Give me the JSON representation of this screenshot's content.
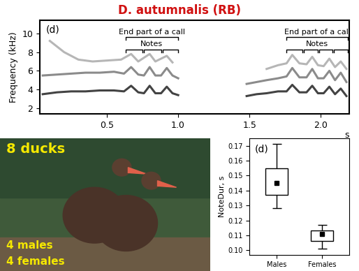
{
  "title": "D. autumnalis (RB)",
  "chart_data": [
    {
      "type": "line",
      "xlabel": "s",
      "ylabel": "Frequency (kHz)",
      "annotations": [
        "(d)",
        "End part of a call",
        "Notes",
        "End part of a call",
        "Notes"
      ],
      "xlim": [
        0.03,
        2.2
      ],
      "xticks": [
        0.5,
        {
          "value": 1.0,
          "label": "1.0"
        },
        1.5,
        {
          "value": 2.0,
          "label": "2.0"
        }
      ],
      "ylim": [
        1.4,
        11.4
      ],
      "yticks": [
        2,
        4,
        6,
        8,
        10
      ],
      "series": [
        {
          "color": "#222222",
          "x": [
            0.05,
            0.15,
            0.25,
            0.35,
            0.45,
            0.55,
            0.62,
            0.67,
            0.72,
            0.76,
            0.8,
            0.84,
            0.88,
            0.92,
            0.96,
            1.0
          ],
          "values": [
            3.5,
            3.7,
            3.8,
            3.8,
            3.9,
            3.9,
            3.8,
            4.4,
            3.7,
            3.6,
            4.4,
            3.6,
            3.6,
            4.3,
            3.6,
            3.4
          ]
        },
        {
          "color": "#777777",
          "x": [
            0.05,
            0.15,
            0.25,
            0.35,
            0.45,
            0.55,
            0.62,
            0.67,
            0.72,
            0.76,
            0.8,
            0.84,
            0.88,
            0.92,
            0.96,
            1.0
          ],
          "values": [
            5.5,
            5.6,
            5.7,
            5.8,
            5.8,
            5.9,
            5.7,
            6.4,
            5.6,
            5.5,
            6.4,
            5.5,
            5.5,
            6.3,
            5.5,
            5.2
          ]
        },
        {
          "color": "#aaaaaa",
          "x": [
            0.1,
            0.2,
            0.3,
            0.4,
            0.5,
            0.6,
            0.67,
            0.72,
            0.8,
            0.84,
            0.92,
            0.96
          ],
          "values": [
            9.2,
            8.0,
            7.2,
            7.0,
            7.1,
            7.2,
            7.8,
            7.0,
            7.8,
            7.0,
            7.6,
            6.9
          ]
        },
        {
          "color": "#222222",
          "x": [
            1.48,
            1.55,
            1.62,
            1.7,
            1.76,
            1.8,
            1.85,
            1.9,
            1.94,
            1.98,
            2.02,
            2.06,
            2.1,
            2.14,
            2.18
          ],
          "values": [
            3.3,
            3.5,
            3.6,
            3.8,
            3.8,
            4.5,
            3.7,
            3.7,
            4.4,
            3.6,
            3.6,
            4.3,
            3.5,
            4.1,
            3.3
          ]
        },
        {
          "color": "#777777",
          "x": [
            1.48,
            1.55,
            1.62,
            1.7,
            1.76,
            1.8,
            1.85,
            1.9,
            1.94,
            1.98,
            2.02,
            2.06,
            2.1,
            2.14,
            2.18
          ],
          "values": [
            4.6,
            4.8,
            5.0,
            5.2,
            5.4,
            6.3,
            5.3,
            5.3,
            6.2,
            5.2,
            5.2,
            6.0,
            5.0,
            5.8,
            4.8
          ]
        },
        {
          "color": "#aaaaaa",
          "x": [
            1.62,
            1.7,
            1.76,
            1.8,
            1.85,
            1.9,
            1.94,
            1.98,
            2.02,
            2.06,
            2.1,
            2.14,
            2.18
          ],
          "values": [
            6.2,
            6.6,
            6.8,
            7.7,
            6.8,
            6.7,
            7.5,
            6.6,
            6.5,
            7.3,
            6.4,
            7.0,
            6.2
          ]
        }
      ]
    },
    {
      "type": "box",
      "ylabel": "NoteDur, s",
      "annotations": [
        "(d)"
      ],
      "categories": [
        "Males",
        "Females"
      ],
      "color": "#000000",
      "boxes": [
        {
          "whisker_low": 0.128,
          "q1": 0.137,
          "mean": 0.145,
          "q3": 0.155,
          "whisker_high": 0.171
        },
        {
          "whisker_low": 0.101,
          "q1": 0.106,
          "mean": 0.111,
          "q3": 0.113,
          "whisker_high": 0.117
        }
      ],
      "ylim": [
        0.097,
        0.175
      ],
      "yticks": [
        {
          "value": 0.1,
          "label": "0.10"
        },
        0.11,
        0.12,
        0.13,
        0.14,
        0.15,
        0.16,
        0.17
      ]
    }
  ],
  "photo": {
    "texts": [
      "8 ducks",
      "4 males",
      "4 females"
    ]
  }
}
